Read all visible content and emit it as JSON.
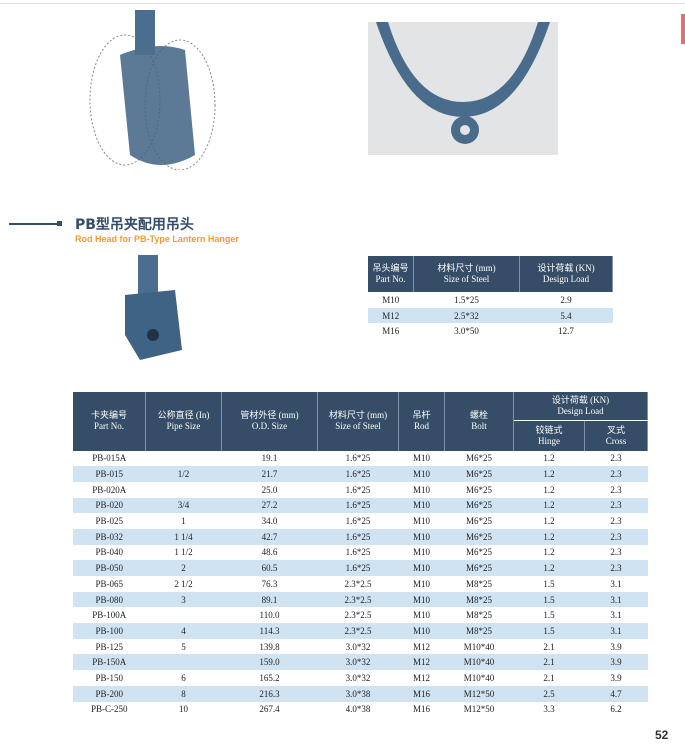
{
  "section": {
    "title_cn": "PB型吊夹配用吊头",
    "title_en": "Rod Head for PB-Type Lantern Hanger"
  },
  "page_number": "52",
  "colors": {
    "header": "#354d66",
    "accent": "#f39a36",
    "stripe": "#cfe3f3",
    "tab": "#ee6a6a"
  },
  "rod_table": {
    "headers": [
      [
        "吊头编号",
        "Part No."
      ],
      [
        "材料尺寸 (mm)",
        "Size of Steel"
      ],
      [
        "设计荷载 (KN)",
        "Design Load"
      ]
    ],
    "rows": [
      [
        "M10",
        "1.5*25",
        "2.9"
      ],
      [
        "M12",
        "2.5*32",
        "5.4"
      ],
      [
        "M16",
        "3.0*50",
        "12.7"
      ]
    ]
  },
  "main_table": {
    "headers": [
      [
        "卡夹编号",
        "Part No."
      ],
      [
        "公称直径 (In)",
        "Pipe Size"
      ],
      [
        "管材外径 (mm)",
        "O.D. Size"
      ],
      [
        "材料尺寸 (mm)",
        "Size of Steel"
      ],
      [
        "吊杆",
        "Rod"
      ],
      [
        "螺栓",
        "Bolt"
      ]
    ],
    "load_header": [
      "设计荷载 (KN)",
      "Design Load"
    ],
    "load_sub": [
      [
        "铰链式",
        "Hinge"
      ],
      [
        "叉式",
        "Cross"
      ]
    ],
    "rows": [
      [
        "PB-015A",
        "",
        "19.1",
        "1.6*25",
        "M10",
        "M6*25",
        "1.2",
        "2.3"
      ],
      [
        "PB-015",
        "1/2",
        "21.7",
        "1.6*25",
        "M10",
        "M6*25",
        "1.2",
        "2.3"
      ],
      [
        "PB-020A",
        "",
        "25.0",
        "1.6*25",
        "M10",
        "M6*25",
        "1.2",
        "2.3"
      ],
      [
        "PB-020",
        "3/4",
        "27.2",
        "1.6*25",
        "M10",
        "M6*25",
        "1.2",
        "2.3"
      ],
      [
        "PB-025",
        "1",
        "34.0",
        "1.6*25",
        "M10",
        "M6*25",
        "1.2",
        "2.3"
      ],
      [
        "PB-032",
        "1 1/4",
        "42.7",
        "1.6*25",
        "M10",
        "M6*25",
        "1.2",
        "2.3"
      ],
      [
        "PB-040",
        "1 1/2",
        "48.6",
        "1.6*25",
        "M10",
        "M6*25",
        "1.2",
        "2.3"
      ],
      [
        "PB-050",
        "2",
        "60.5",
        "1.6*25",
        "M10",
        "M6*25",
        "1.2",
        "2.3"
      ],
      [
        "PB-065",
        "2 1/2",
        "76.3",
        "2.3*2.5",
        "M10",
        "M8*25",
        "1.5",
        "3.1"
      ],
      [
        "PB-080",
        "3",
        "89.1",
        "2.3*2.5",
        "M10",
        "M8*25",
        "1.5",
        "3.1"
      ],
      [
        "PB-100A",
        "",
        "110.0",
        "2.3*2.5",
        "M10",
        "M8*25",
        "1.5",
        "3.1"
      ],
      [
        "PB-100",
        "4",
        "114.3",
        "2.3*2.5",
        "M10",
        "M8*25",
        "1.5",
        "3.1"
      ],
      [
        "PB-125",
        "5",
        "139.8",
        "3.0*32",
        "M12",
        "M10*40",
        "2.1",
        "3.9"
      ],
      [
        "PB-150A",
        "",
        "159.0",
        "3.0*32",
        "M12",
        "M10*40",
        "2.1",
        "3.9"
      ],
      [
        "PB-150",
        "6",
        "165.2",
        "3.0*32",
        "M12",
        "M10*40",
        "2.1",
        "3.9"
      ],
      [
        "PB-200",
        "8",
        "216.3",
        "3.0*38",
        "M16",
        "M12*50",
        "2.5",
        "4.7"
      ],
      [
        "PB-C-250",
        "10",
        "267.4",
        "4.0*38",
        "M16",
        "M12*50",
        "3.3",
        "6.2"
      ]
    ]
  }
}
